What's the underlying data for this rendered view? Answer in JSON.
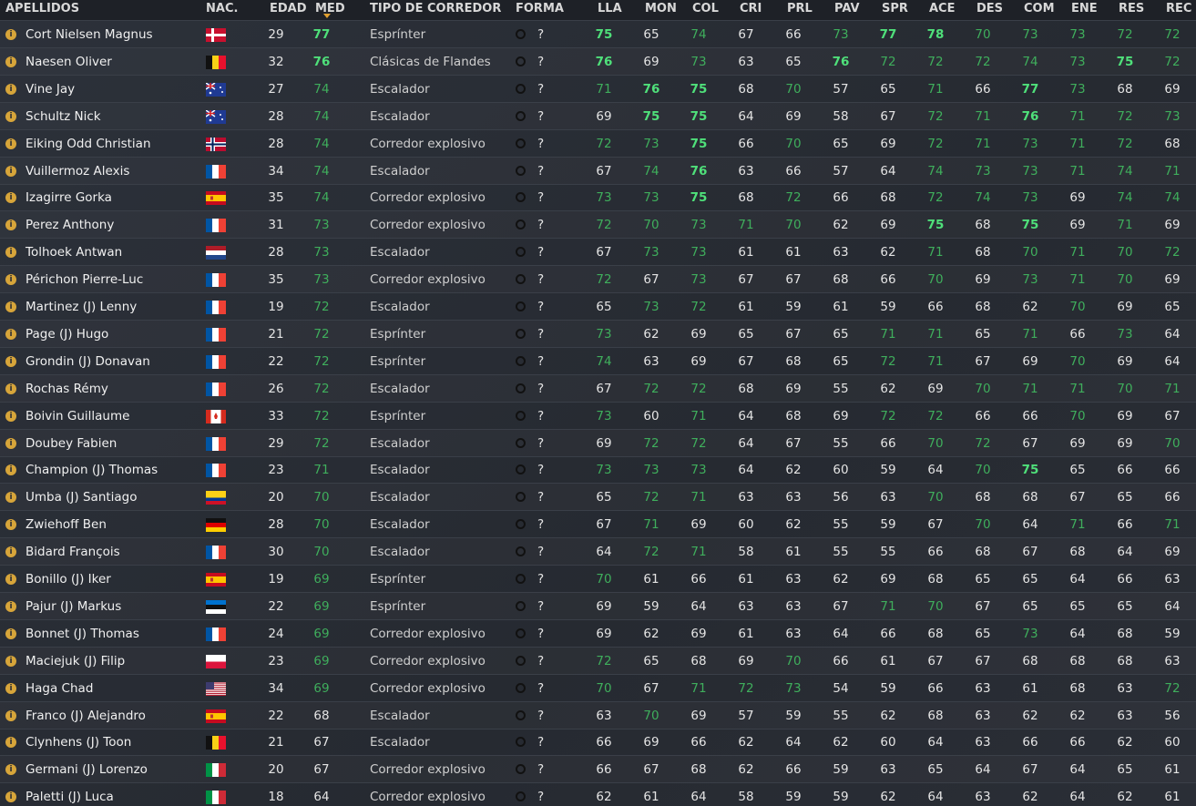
{
  "table": {
    "columns": [
      "APELLIDOS",
      "NAC.",
      "EDAD",
      "MED",
      "TIPO DE CORREDOR",
      "FORMA",
      "LLA",
      "MON",
      "COL",
      "CRI",
      "PRL",
      "PAV",
      "SPR",
      "ACE",
      "DES",
      "COM",
      "ENE",
      "RES",
      "REC"
    ],
    "rows": [
      {
        "name": "Cort Nielsen Magnus",
        "age": 29,
        "med": 77,
        "type": "Esprínter",
        "forma": "?",
        "stats": [
          75,
          65,
          74,
          67,
          66,
          73,
          77,
          78,
          70,
          73,
          73,
          72,
          72
        ]
      },
      {
        "name": "Naesen Oliver",
        "age": 32,
        "med": 76,
        "type": "Clásicas de Flandes",
        "forma": "?",
        "stats": [
          76,
          69,
          73,
          63,
          65,
          76,
          72,
          72,
          72,
          74,
          73,
          75,
          72
        ]
      },
      {
        "name": "Vine Jay",
        "age": 27,
        "med": 74,
        "type": "Escalador",
        "forma": "?",
        "stats": [
          71,
          76,
          75,
          68,
          70,
          57,
          65,
          71,
          66,
          77,
          73,
          68,
          69
        ]
      },
      {
        "name": "Schultz Nick",
        "age": 28,
        "med": 74,
        "type": "Escalador",
        "forma": "?",
        "stats": [
          69,
          75,
          75,
          64,
          69,
          58,
          67,
          72,
          71,
          76,
          71,
          72,
          73
        ]
      },
      {
        "name": "Eiking Odd Christian",
        "age": 28,
        "med": 74,
        "type": "Corredor explosivo",
        "forma": "?",
        "stats": [
          72,
          73,
          75,
          66,
          70,
          65,
          69,
          72,
          71,
          73,
          71,
          72,
          68
        ]
      },
      {
        "name": "Vuillermoz Alexis",
        "age": 34,
        "med": 74,
        "type": "Escalador",
        "forma": "?",
        "stats": [
          67,
          74,
          76,
          63,
          66,
          57,
          64,
          74,
          73,
          73,
          71,
          74,
          71
        ]
      },
      {
        "name": "Izagirre Gorka",
        "age": 35,
        "med": 74,
        "type": "Corredor explosivo",
        "forma": "?",
        "stats": [
          73,
          73,
          75,
          68,
          72,
          66,
          68,
          72,
          74,
          73,
          69,
          74,
          74
        ]
      },
      {
        "name": "Perez Anthony",
        "age": 31,
        "med": 73,
        "type": "Corredor explosivo",
        "forma": "?",
        "stats": [
          72,
          70,
          73,
          71,
          70,
          62,
          69,
          75,
          68,
          75,
          69,
          71,
          69
        ]
      },
      {
        "name": "Tolhoek Antwan",
        "age": 28,
        "med": 73,
        "type": "Escalador",
        "forma": "?",
        "stats": [
          67,
          73,
          73,
          61,
          61,
          63,
          62,
          71,
          68,
          70,
          71,
          70,
          72
        ]
      },
      {
        "name": "Périchon Pierre-Luc",
        "age": 35,
        "med": 73,
        "type": "Corredor explosivo",
        "forma": "?",
        "stats": [
          72,
          67,
          73,
          67,
          67,
          68,
          66,
          70,
          69,
          73,
          71,
          70,
          69
        ]
      },
      {
        "name": "Martinez (J) Lenny",
        "age": 19,
        "med": 72,
        "type": "Escalador",
        "forma": "?",
        "stats": [
          65,
          73,
          72,
          61,
          59,
          61,
          59,
          66,
          68,
          62,
          70,
          69,
          65
        ]
      },
      {
        "name": "Page (J) Hugo",
        "age": 21,
        "med": 72,
        "type": "Esprínter",
        "forma": "?",
        "stats": [
          73,
          62,
          69,
          65,
          67,
          65,
          71,
          71,
          65,
          71,
          66,
          73,
          64
        ]
      },
      {
        "name": "Grondin (J) Donavan",
        "age": 22,
        "med": 72,
        "type": "Esprínter",
        "forma": "?",
        "stats": [
          74,
          63,
          69,
          67,
          68,
          65,
          72,
          71,
          67,
          69,
          70,
          69,
          64
        ]
      },
      {
        "name": "Rochas Rémy",
        "age": 26,
        "med": 72,
        "type": "Escalador",
        "forma": "?",
        "stats": [
          67,
          72,
          72,
          68,
          69,
          55,
          62,
          69,
          70,
          71,
          71,
          70,
          71
        ]
      },
      {
        "name": "Boivin Guillaume",
        "age": 33,
        "med": 72,
        "type": "Esprínter",
        "forma": "?",
        "stats": [
          73,
          60,
          71,
          64,
          68,
          69,
          72,
          72,
          66,
          66,
          70,
          69,
          67
        ]
      },
      {
        "name": "Doubey Fabien",
        "age": 29,
        "med": 72,
        "type": "Escalador",
        "forma": "?",
        "stats": [
          69,
          72,
          72,
          64,
          67,
          55,
          66,
          70,
          72,
          67,
          69,
          69,
          70
        ]
      },
      {
        "name": "Champion (J) Thomas",
        "age": 23,
        "med": 71,
        "type": "Escalador",
        "forma": "?",
        "stats": [
          73,
          73,
          73,
          64,
          62,
          60,
          59,
          64,
          70,
          75,
          65,
          66,
          66
        ]
      },
      {
        "name": "Umba (J) Santiago",
        "age": 20,
        "med": 70,
        "type": "Escalador",
        "forma": "?",
        "stats": [
          65,
          72,
          71,
          63,
          63,
          56,
          63,
          70,
          68,
          68,
          67,
          65,
          66
        ]
      },
      {
        "name": "Zwiehoff Ben",
        "age": 28,
        "med": 70,
        "type": "Escalador",
        "forma": "?",
        "stats": [
          67,
          71,
          69,
          60,
          62,
          55,
          59,
          67,
          70,
          64,
          71,
          66,
          71
        ]
      },
      {
        "name": "Bidard François",
        "age": 30,
        "med": 70,
        "type": "Escalador",
        "forma": "?",
        "stats": [
          64,
          72,
          71,
          58,
          61,
          55,
          55,
          66,
          68,
          67,
          68,
          64,
          69
        ]
      },
      {
        "name": "Bonillo (J) Iker",
        "age": 19,
        "med": 69,
        "type": "Esprínter",
        "forma": "?",
        "stats": [
          70,
          61,
          66,
          61,
          63,
          62,
          69,
          68,
          65,
          65,
          64,
          66,
          63
        ]
      },
      {
        "name": "Pajur (J) Markus",
        "age": 22,
        "med": 69,
        "type": "Esprínter",
        "forma": "?",
        "stats": [
          69,
          59,
          64,
          63,
          63,
          67,
          71,
          70,
          67,
          65,
          65,
          65,
          64
        ]
      },
      {
        "name": "Bonnet (J) Thomas",
        "age": 24,
        "med": 69,
        "type": "Corredor explosivo",
        "forma": "?",
        "stats": [
          69,
          62,
          69,
          61,
          63,
          64,
          66,
          68,
          65,
          73,
          64,
          68,
          59
        ]
      },
      {
        "name": "Maciejuk (J) Filip",
        "age": 23,
        "med": 69,
        "type": "Corredor explosivo",
        "forma": "?",
        "stats": [
          72,
          65,
          68,
          69,
          70,
          66,
          61,
          67,
          67,
          68,
          68,
          68,
          63
        ]
      },
      {
        "name": "Haga Chad",
        "age": 34,
        "med": 69,
        "type": "Corredor explosivo",
        "forma": "?",
        "stats": [
          70,
          67,
          71,
          72,
          73,
          54,
          59,
          66,
          63,
          61,
          68,
          63,
          72
        ]
      },
      {
        "name": "Franco (J) Alejandro",
        "age": 22,
        "med": 68,
        "type": "Escalador",
        "forma": "?",
        "stats": [
          63,
          70,
          69,
          57,
          59,
          55,
          62,
          68,
          63,
          62,
          62,
          63,
          56
        ]
      },
      {
        "name": "Clynhens (J) Toon",
        "age": 21,
        "med": 67,
        "type": "Escalador",
        "forma": "?",
        "stats": [
          66,
          69,
          66,
          62,
          64,
          62,
          60,
          64,
          63,
          66,
          66,
          62,
          60
        ]
      },
      {
        "name": "Germani (J) Lorenzo",
        "age": 20,
        "med": 67,
        "type": "Corredor explosivo",
        "forma": "?",
        "stats": [
          66,
          67,
          68,
          62,
          66,
          59,
          63,
          65,
          64,
          67,
          64,
          65,
          61
        ]
      },
      {
        "name": "Paletti (J) Luca",
        "age": 18,
        "med": 64,
        "type": "Corredor explosivo",
        "forma": "?",
        "stats": [
          62,
          61,
          64,
          58,
          59,
          59,
          62,
          64,
          63,
          62,
          64,
          62,
          61
        ]
      }
    ]
  }
}
